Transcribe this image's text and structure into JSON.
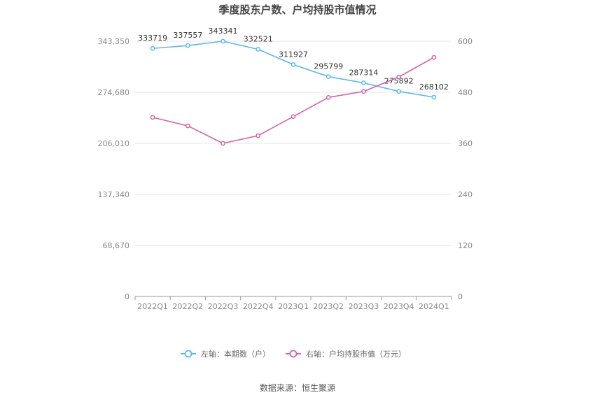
{
  "chart_data": {
    "type": "line",
    "title": "季度股东户数、户均持股市值情况",
    "categories": [
      "2022Q1",
      "2022Q2",
      "2022Q3",
      "2022Q4",
      "2023Q1",
      "2023Q2",
      "2023Q3",
      "2023Q4",
      "2024Q1"
    ],
    "left_axis": {
      "ticks": [
        "0",
        "68,670",
        "137,340",
        "206,010",
        "274,680",
        "343,350"
      ],
      "ylim": [
        0,
        343350
      ]
    },
    "right_axis": {
      "ticks": [
        "0",
        "120",
        "240",
        "360",
        "480",
        "600"
      ],
      "ylim": [
        0,
        600
      ]
    },
    "series": [
      {
        "name": "左轴：本期数（户）",
        "axis": "left",
        "color": "#5bb8ee",
        "values": [
          333719,
          337557,
          343341,
          332521,
          311927,
          295799,
          287314,
          275892,
          268102
        ],
        "labels": [
          "333719",
          "337557",
          "343341",
          "332521",
          "311927",
          "295799",
          "287314",
          "275892",
          "268102"
        ]
      },
      {
        "name": "右轴：户均持股市值（万元）",
        "axis": "right",
        "color": "#d563ad",
        "values": [
          421,
          401,
          360,
          378,
          423,
          468,
          482,
          516,
          562
        ]
      }
    ],
    "grid": true,
    "legend_position": "bottom"
  },
  "footer": {
    "source": "数据来源：恒生聚源"
  }
}
